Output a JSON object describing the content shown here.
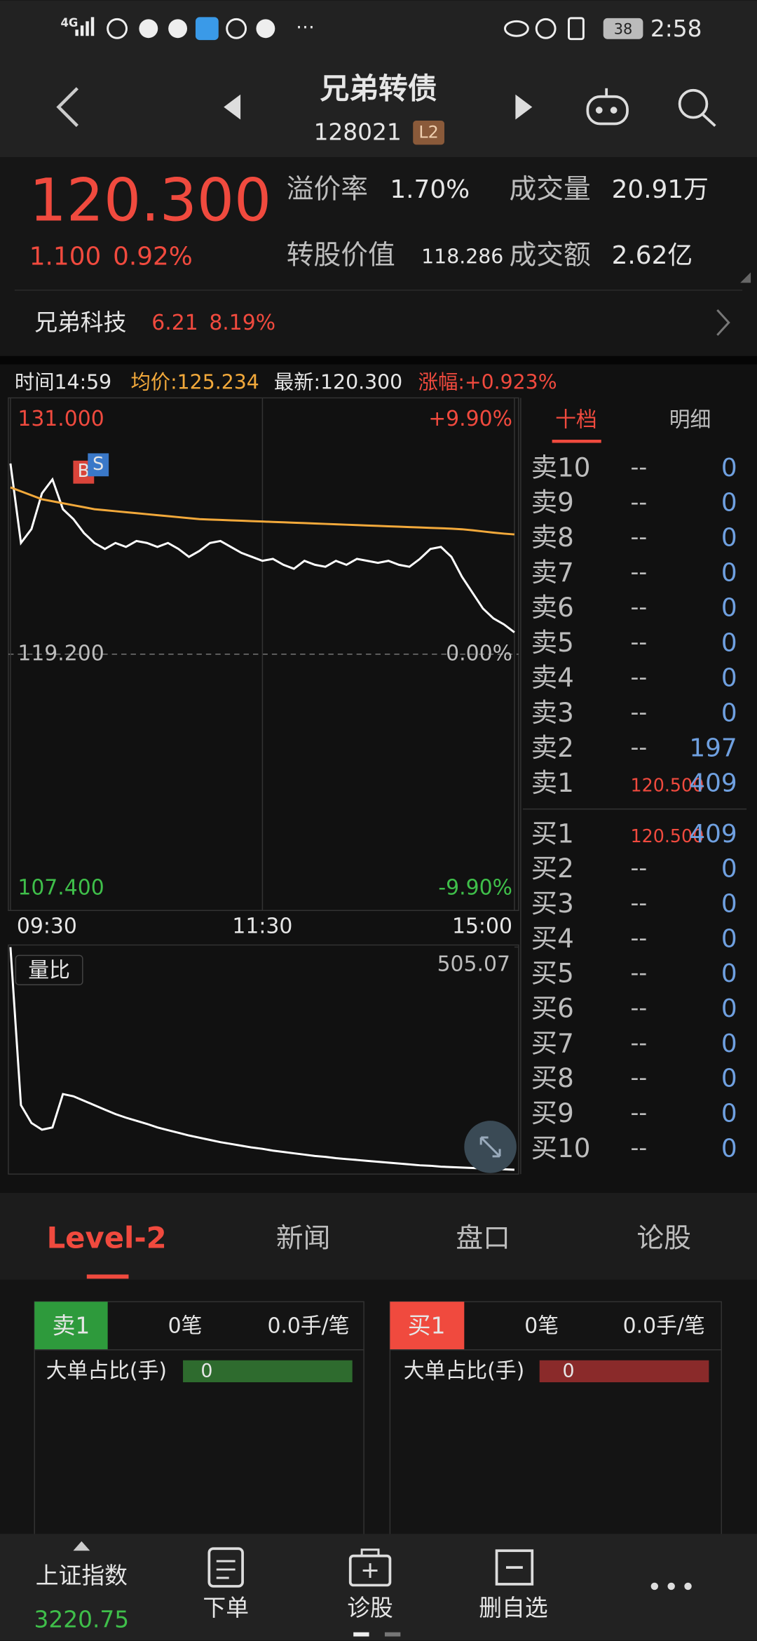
{
  "status_bar": {
    "network": "4G",
    "battery": "38",
    "time": "2:58"
  },
  "header": {
    "title": "兄弟转债",
    "code": "128021",
    "badge": "L2"
  },
  "quote": {
    "price": "120.300",
    "change": "1.100",
    "change_pct": "0.92%",
    "stats": [
      {
        "label": "溢价率",
        "value": "1.70%"
      },
      {
        "label": "成交量",
        "value": "20.91万"
      },
      {
        "label": "转股价值",
        "value": "118.286"
      },
      {
        "label": "成交额",
        "value": "2.62亿"
      }
    ]
  },
  "underlying": {
    "name": "兄弟科技",
    "price": "6.21",
    "change_pct": "8.19%"
  },
  "chart_info": {
    "time": "时间14:59",
    "avg": "均价:125.234",
    "last": "最新:120.300",
    "change": "涨幅:+0.923%"
  },
  "chart_data": [
    {
      "type": "line",
      "ylim": [
        107.4,
        131
      ],
      "yticks": [
        {
          "value": 131,
          "label": "131.000"
        },
        {
          "value": 119.2,
          "label": "119.200"
        },
        {
          "value": 107.4,
          "label": "107.400"
        }
      ],
      "y2lim": [
        -9.9,
        9.9
      ],
      "y2ticks": [
        {
          "value": 9.9,
          "label": "+9.90%"
        },
        {
          "value": 0,
          "label": "0.00%"
        },
        {
          "value": -9.9,
          "label": "-9.90%"
        }
      ],
      "xlim": [
        0,
        48
      ],
      "xticks": [
        {
          "value": 0,
          "label": "09:30"
        },
        {
          "value": 24,
          "label": "11:30"
        },
        {
          "value": 48,
          "label": "15:00"
        }
      ],
      "markers": [
        "B",
        "S"
      ],
      "series": [
        {
          "color": "#ffffff",
          "values": [
            128.8,
            124.8,
            125.5,
            127.3,
            128.0,
            126.5,
            126.0,
            125.3,
            124.8,
            124.5,
            124.8,
            124.6,
            124.9,
            124.8,
            124.6,
            124.8,
            124.5,
            124.1,
            124.4,
            124.8,
            124.9,
            124.6,
            124.3,
            124.1,
            123.9,
            124.0,
            123.7,
            123.5,
            123.9,
            123.7,
            123.6,
            123.9,
            123.7,
            124.0,
            123.9,
            123.8,
            123.9,
            123.7,
            123.6,
            124.0,
            124.5,
            124.6,
            124.1,
            123.1,
            122.3,
            121.5,
            121.0,
            120.7,
            120.3
          ]
        },
        {
          "color": "#f2a93b",
          "values": [
            127.6,
            127.4,
            127.2,
            127.0,
            126.9,
            126.8,
            126.7,
            126.6,
            126.5,
            126.45,
            126.4,
            126.35,
            126.3,
            126.25,
            126.2,
            126.15,
            126.1,
            126.05,
            126.0,
            125.98,
            125.96,
            125.94,
            125.92,
            125.9,
            125.88,
            125.86,
            125.84,
            125.82,
            125.8,
            125.78,
            125.76,
            125.74,
            125.72,
            125.7,
            125.68,
            125.66,
            125.64,
            125.62,
            125.6,
            125.58,
            125.56,
            125.54,
            125.52,
            125.49,
            125.44,
            125.38,
            125.32,
            125.27,
            125.23
          ]
        }
      ]
    },
    {
      "type": "line",
      "label": "量比",
      "ylim": [
        0,
        505.07
      ],
      "yticks": [
        505.07
      ],
      "xlim": [
        0,
        48
      ],
      "series": [
        {
          "color": "#ffffff",
          "values": [
            505,
            150,
            110,
            95,
            100,
            175,
            170,
            160,
            150,
            140,
            130,
            122,
            115,
            108,
            100,
            94,
            88,
            82,
            77,
            72,
            67,
            63,
            59,
            55,
            52,
            48,
            45,
            42,
            39,
            36,
            34,
            31,
            29,
            27,
            25,
            23,
            21,
            19,
            17,
            15,
            14,
            12,
            11,
            10,
            9,
            8,
            7,
            6,
            5
          ]
        }
      ]
    }
  ],
  "order_book": {
    "tabs": [
      "十档",
      "明细"
    ],
    "asks": [
      {
        "label": "卖10",
        "price": "--",
        "volume": 0
      },
      {
        "label": "卖9",
        "price": "--",
        "volume": 0
      },
      {
        "label": "卖8",
        "price": "--",
        "volume": 0
      },
      {
        "label": "卖7",
        "price": "--",
        "volume": 0
      },
      {
        "label": "卖6",
        "price": "--",
        "volume": 0
      },
      {
        "label": "卖5",
        "price": "--",
        "volume": 0
      },
      {
        "label": "卖4",
        "price": "--",
        "volume": 0
      },
      {
        "label": "卖3",
        "price": "--",
        "volume": 0
      },
      {
        "label": "卖2",
        "price": "--",
        "volume": 197
      },
      {
        "label": "卖1",
        "price": "120.500",
        "volume": 409
      }
    ],
    "bids": [
      {
        "label": "买1",
        "price": "120.500",
        "volume": 409
      },
      {
        "label": "买2",
        "price": "--",
        "volume": 0
      },
      {
        "label": "买3",
        "price": "--",
        "volume": 0
      },
      {
        "label": "买4",
        "price": "--",
        "volume": 0
      },
      {
        "label": "买5",
        "price": "--",
        "volume": 0
      },
      {
        "label": "买6",
        "price": "--",
        "volume": 0
      },
      {
        "label": "买7",
        "price": "--",
        "volume": 0
      },
      {
        "label": "买8",
        "price": "--",
        "volume": 0
      },
      {
        "label": "买9",
        "price": "--",
        "volume": 0
      },
      {
        "label": "买10",
        "price": "--",
        "volume": 0
      }
    ]
  },
  "level2": {
    "tabs": [
      "Level-2",
      "新闻",
      "盘口",
      "论股"
    ],
    "sell": {
      "label": "卖1",
      "count": "0笔",
      "avg": "0.0手/笔",
      "ratio_label": "大单占比(手)",
      "ratio": "0"
    },
    "buy": {
      "label": "买1",
      "count": "0笔",
      "avg": "0.0手/笔",
      "ratio_label": "大单占比(手)",
      "ratio": "0"
    }
  },
  "bottom_nav": {
    "index_name": "上证指数",
    "index_value": "3220.75",
    "items": [
      "下单",
      "诊股",
      "删自选"
    ]
  }
}
